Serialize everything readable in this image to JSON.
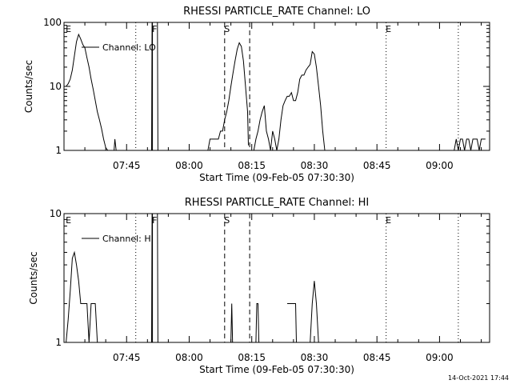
{
  "chart_data": [
    {
      "type": "line",
      "title": "RHESSI PARTICLE_RATE Channel: LO",
      "xlabel": "Start Time (09-Feb-05 07:30:30)",
      "ylabel": "Counts/sec",
      "yscale": "log",
      "ylim": [
        1,
        100
      ],
      "xlim_minutes": [
        0,
        102
      ],
      "ytick_labels": [
        {
          "value": 1,
          "label": "1"
        },
        {
          "value": 10,
          "label": "10"
        },
        {
          "value": 100,
          "label": "100"
        }
      ],
      "xtick_labels": [
        {
          "value": 15,
          "label": "07:45"
        },
        {
          "value": 30,
          "label": "08:00"
        },
        {
          "value": 45,
          "label": "08:15"
        },
        {
          "value": 60,
          "label": "08:30"
        },
        {
          "value": 75,
          "label": "08:45"
        },
        {
          "value": 90,
          "label": "09:00"
        }
      ],
      "legend": "Channel: LO",
      "legend_location": "top-left",
      "markers": [
        {
          "x": 0.5,
          "label": "E",
          "style": "none"
        },
        {
          "x": 17.2,
          "label": "",
          "style": "dotted"
        },
        {
          "x": 21.2,
          "label": "F",
          "style": "solid"
        },
        {
          "x": 38.5,
          "label": "S",
          "style": "dashed"
        },
        {
          "x": 44.5,
          "label": "",
          "style": "dashed"
        },
        {
          "x": 77.2,
          "label": "E",
          "style": "dotted"
        },
        {
          "x": 94.5,
          "label": "",
          "style": "dotted"
        }
      ],
      "segments": [
        {
          "name": "orbit-1",
          "x": [
            0.5,
            1.0,
            1.5,
            2.0,
            2.5,
            3.0,
            3.5,
            4.0,
            4.5,
            5.0,
            5.5,
            6.0,
            6.5,
            7.0,
            7.5,
            8.0,
            8.5,
            9.0,
            9.5,
            10.0,
            10.5,
            11.0
          ],
          "y": [
            10,
            11,
            13,
            18,
            30,
            50,
            65,
            55,
            45,
            40,
            28,
            20,
            13,
            9,
            6,
            4,
            3,
            2.2,
            1.5,
            1.1,
            1,
            1
          ]
        },
        {
          "name": "spike-early",
          "x": [
            12.0,
            12.2,
            12.5
          ],
          "y": [
            1,
            1.5,
            1
          ]
        },
        {
          "name": "block-F",
          "x": [
            21.0,
            21.1,
            22.4,
            22.5
          ],
          "y": [
            1,
            100,
            100,
            1
          ]
        },
        {
          "name": "orbit-2",
          "x": [
            34.0,
            34.5,
            35.0,
            36.0,
            37.0,
            37.5,
            38.0,
            38.5,
            39.0,
            39.5,
            40.0,
            40.5,
            41.0,
            41.5,
            42.0,
            42.5,
            43.0,
            43.5,
            44.0,
            44.2
          ],
          "y": [
            1,
            1,
            1.5,
            1.5,
            1.5,
            2,
            2,
            3,
            4,
            6,
            10,
            16,
            25,
            38,
            48,
            42,
            25,
            10,
            4,
            1.2
          ]
        },
        {
          "name": "orbit-3",
          "x": [
            45.5,
            46.0,
            46.5,
            47.0,
            47.5,
            48.0,
            48.5,
            49.0,
            49.5,
            50.0,
            50.5,
            51.0,
            51.5,
            52.0,
            52.5,
            53.0,
            53.5,
            54.0,
            54.5,
            55.0,
            55.5,
            56.0,
            56.5,
            57.0,
            57.5,
            58.0,
            58.5,
            59.0,
            59.5,
            60.0,
            60.5,
            61.0,
            61.5,
            62.0,
            62.5
          ],
          "y": [
            1,
            1.5,
            2,
            3,
            4,
            5,
            2,
            1.5,
            1,
            2,
            1.5,
            1,
            1.5,
            3,
            5,
            6,
            7,
            7,
            8,
            6,
            6,
            8,
            13,
            15,
            15,
            18,
            20,
            22,
            35,
            32,
            20,
            10,
            5,
            2,
            1
          ]
        },
        {
          "name": "orbit-4",
          "x": [
            93.5,
            94.0,
            94.5,
            95.0,
            95.5,
            96.0,
            96.5,
            97.0,
            97.5,
            98.0,
            98.5,
            99.0,
            99.5,
            100.0,
            101.0
          ],
          "y": [
            1,
            1.5,
            1,
            1.5,
            1.5,
            1,
            1.5,
            1.5,
            1,
            1.5,
            1.5,
            1.5,
            1,
            1.5,
            1.5
          ]
        }
      ]
    },
    {
      "type": "line",
      "title": "RHESSI PARTICLE_RATE Channel: HI",
      "xlabel": "Start Time (09-Feb-05 07:30:30)",
      "ylabel": "Counts/sec",
      "yscale": "log",
      "ylim": [
        1,
        10
      ],
      "xlim_minutes": [
        0,
        102
      ],
      "ytick_labels": [
        {
          "value": 1,
          "label": "1"
        },
        {
          "value": 10,
          "label": "10"
        }
      ],
      "xtick_labels": [
        {
          "value": 15,
          "label": "07:45"
        },
        {
          "value": 30,
          "label": "08:00"
        },
        {
          "value": 45,
          "label": "08:15"
        },
        {
          "value": 60,
          "label": "08:30"
        },
        {
          "value": 75,
          "label": "08:45"
        },
        {
          "value": 90,
          "label": "09:00"
        }
      ],
      "legend": "Channel: HI",
      "legend_location": "top-left",
      "markers": [
        {
          "x": 0.5,
          "label": "E",
          "style": "none"
        },
        {
          "x": 17.2,
          "label": "",
          "style": "dotted"
        },
        {
          "x": 21.2,
          "label": "F",
          "style": "solid"
        },
        {
          "x": 38.5,
          "label": "S",
          "style": "dashed"
        },
        {
          "x": 44.5,
          "label": "",
          "style": "dashed"
        },
        {
          "x": 77.2,
          "label": "E",
          "style": "dotted"
        },
        {
          "x": 94.5,
          "label": "",
          "style": "dotted"
        }
      ],
      "segments": [
        {
          "name": "orbit-1",
          "x": [
            0.5,
            1.0,
            1.5,
            2.0,
            2.5,
            3.0,
            3.5,
            4.0,
            4.5,
            5.0,
            5.5,
            6.0,
            6.5,
            7.0,
            7.5,
            8.0
          ],
          "y": [
            1,
            1.5,
            2.5,
            4.5,
            5,
            4,
            3,
            2,
            2,
            2,
            2,
            1,
            2,
            2,
            2,
            1
          ]
        },
        {
          "name": "block-F",
          "x": [
            21.0,
            21.1,
            22.4,
            22.5
          ],
          "y": [
            1,
            10,
            10,
            1
          ]
        },
        {
          "name": "spike-1",
          "x": [
            40.0,
            40.2,
            40.4
          ],
          "y": [
            1,
            2,
            1
          ]
        },
        {
          "name": "spike-2",
          "x": [
            46.0,
            46.2,
            46.5,
            46.7
          ],
          "y": [
            1,
            2,
            2,
            1
          ]
        },
        {
          "name": "step",
          "x": [
            53.5,
            55.5,
            55.7
          ],
          "y": [
            2,
            2,
            1
          ]
        },
        {
          "name": "spike-3",
          "x": [
            59.0,
            59.5,
            60.0,
            60.5,
            61.0
          ],
          "y": [
            1,
            2,
            3,
            2,
            1
          ]
        }
      ]
    }
  ],
  "footer": {
    "date": "14-Oct-2021 17:44"
  }
}
